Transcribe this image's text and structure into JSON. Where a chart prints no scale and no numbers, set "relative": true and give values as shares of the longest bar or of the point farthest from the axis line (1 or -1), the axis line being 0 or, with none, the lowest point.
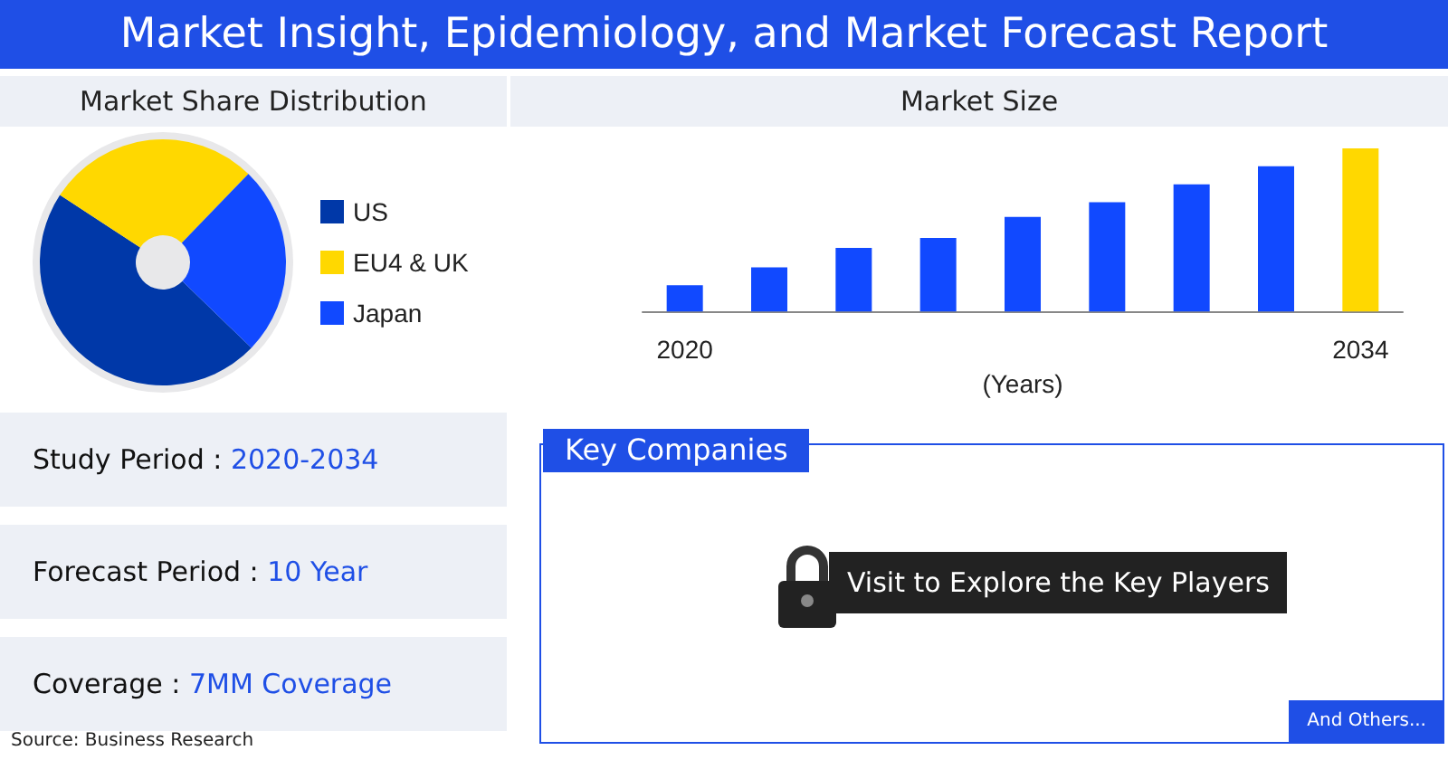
{
  "chart_data": [
    {
      "type": "other",
      "title": "Market Insight, Epidemiology, and Market Forecast Report",
      "annotations": [
        "Study Period : 2020-2034",
        "Forecast Period : 10 Year",
        "Coverage : 7MM Coverage",
        "Source: Business Research"
      ]
    },
    {
      "type": "donut",
      "title": "Market Share Distribution",
      "categories": [
        "US",
        "EU4 & UK",
        "Japan"
      ],
      "values": [
        47,
        28,
        25
      ],
      "colors": [
        "#0038a8",
        "#ffd800",
        "#1149ff"
      ],
      "legend": "right"
    },
    {
      "type": "bar",
      "title": "Market Size",
      "xlabel": "(Years)",
      "relative": true,
      "categories": [
        "2020",
        null,
        null,
        null,
        null,
        null,
        null,
        null,
        "2034"
      ],
      "values": [
        0.16,
        0.27,
        0.39,
        0.45,
        0.58,
        0.67,
        0.78,
        0.89,
        1
      ],
      "colors": [
        "#1149ff",
        "#1149ff",
        "#1149ff",
        "#1149ff",
        "#1149ff",
        "#1149ff",
        "#1149ff",
        "#1149ff",
        "#ffd800"
      ]
    },
    {
      "type": "other",
      "title": "Key Companies",
      "annotations": [
        "Visit to Explore the Key Players",
        "And Others..."
      ]
    }
  ]
}
